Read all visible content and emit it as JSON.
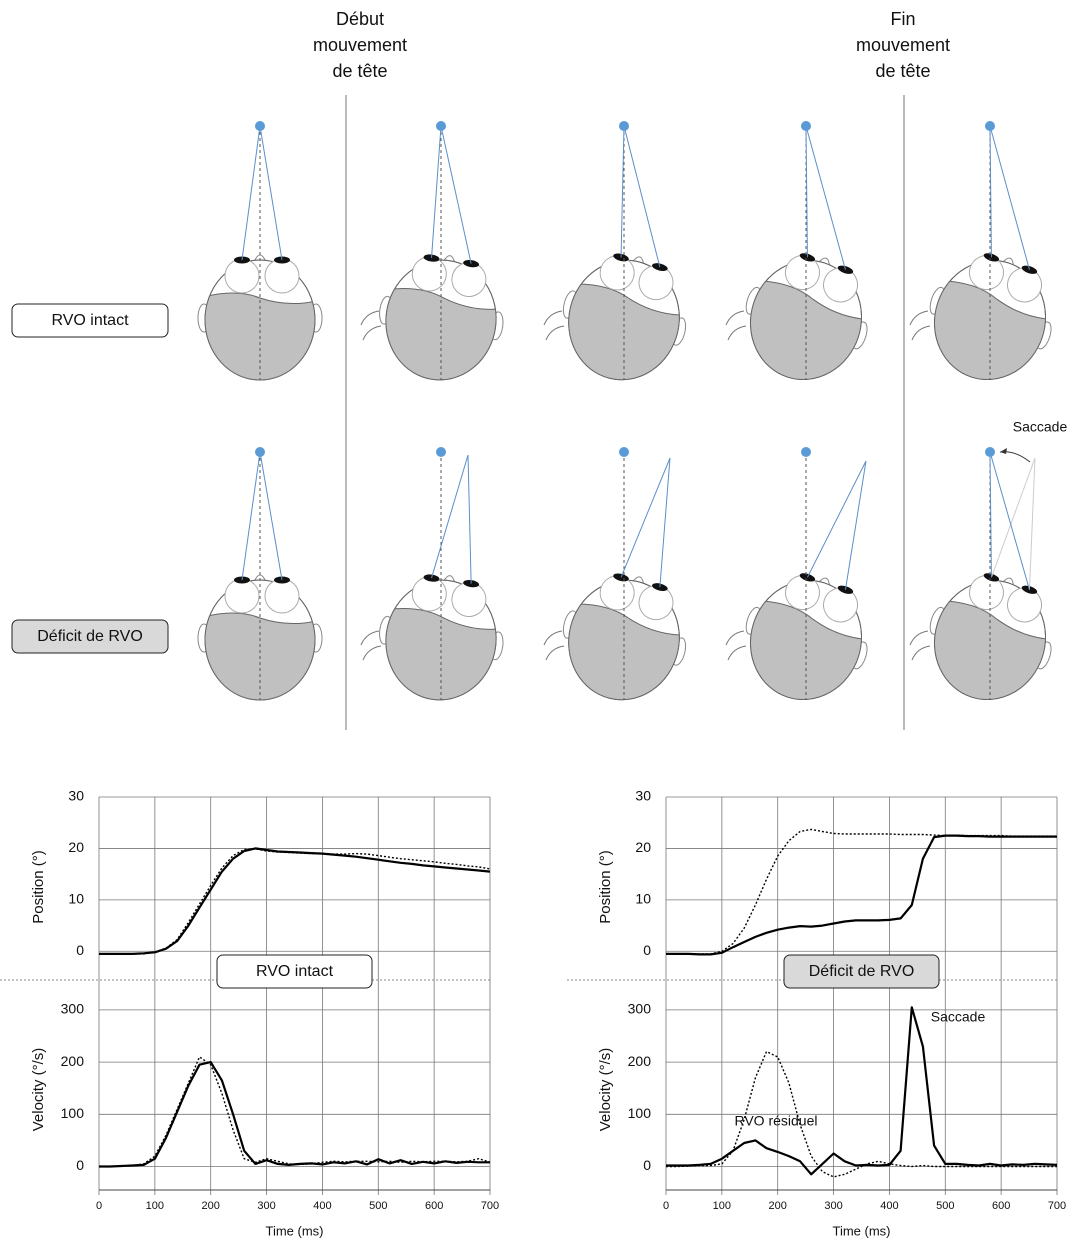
{
  "column_headers": [
    [
      "Début",
      "mouvement",
      "de tête"
    ],
    [
      "Fin",
      "mouvement",
      "de tête"
    ]
  ],
  "row_labels": [
    "RVO intact",
    "Déficit de RVO"
  ],
  "diagram_annotation": "Saccade",
  "chart_data": [
    {
      "type": "line",
      "label": "RVO intact",
      "xlabel": "Time (ms)",
      "xlim": [
        0,
        700
      ],
      "xticks": [
        0,
        100,
        200,
        300,
        400,
        500,
        600,
        700
      ],
      "annotations": [],
      "panels": [
        {
          "ylabel": "Position (°)",
          "ylim": [
            -5,
            30
          ],
          "yticks": [
            0,
            10,
            20,
            30
          ],
          "x": [
            0,
            20,
            40,
            60,
            80,
            100,
            120,
            140,
            160,
            180,
            200,
            220,
            240,
            260,
            280,
            300,
            320,
            340,
            360,
            380,
            400,
            420,
            440,
            460,
            480,
            500,
            520,
            540,
            560,
            580,
            600,
            620,
            640,
            660,
            680,
            700
          ],
          "series": [
            {
              "color": "#000000",
              "style": "dotted",
              "values": [
                -0.5,
                -0.5,
                -0.5,
                -0.5,
                -0.5,
                -0.2,
                0.6,
                2.3,
                5.6,
                9.2,
                12.8,
                16.2,
                18.6,
                19.8,
                19.9,
                19.5,
                19.3,
                19.2,
                19.1,
                19,
                19,
                18.9,
                18.9,
                19,
                18.9,
                18.6,
                18.3,
                18,
                17.8,
                17.6,
                17.4,
                17.1,
                16.9,
                16.6,
                16.4,
                16
              ]
            },
            {
              "color": "#000000",
              "style": "solid",
              "values": [
                -0.5,
                -0.5,
                -0.5,
                -0.5,
                -0.4,
                -0.2,
                0.5,
                2,
                5,
                8.5,
                12,
                15.5,
                18,
                19.5,
                20,
                19.7,
                19.4,
                19.3,
                19.2,
                19.1,
                19,
                18.8,
                18.6,
                18.4,
                18.1,
                17.8,
                17.5,
                17.2,
                17,
                16.7,
                16.5,
                16.3,
                16.1,
                15.9,
                15.7,
                15.5
              ]
            }
          ]
        },
        {
          "ylabel": "Velocity (°/s)",
          "ylim": [
            -45,
            340
          ],
          "yticks": [
            0,
            100,
            200,
            300
          ],
          "x": [
            0,
            20,
            40,
            60,
            80,
            100,
            120,
            140,
            160,
            180,
            200,
            220,
            240,
            260,
            280,
            300,
            320,
            340,
            360,
            380,
            400,
            420,
            440,
            460,
            480,
            500,
            520,
            540,
            560,
            580,
            600,
            620,
            640,
            660,
            680,
            700
          ],
          "series": [
            {
              "color": "#000000",
              "style": "dotted",
              "values": [
                0,
                0,
                1,
                2,
                5,
                20,
                60,
                110,
                160,
                210,
                195,
                140,
                70,
                15,
                8,
                15,
                10,
                5,
                4,
                5,
                8,
                10,
                9,
                10,
                10,
                9,
                10,
                8,
                10,
                9,
                10,
                10,
                9,
                10,
                15,
                8
              ]
            },
            {
              "color": "#000000",
              "style": "solid",
              "values": [
                0,
                0,
                1,
                2,
                3,
                15,
                55,
                105,
                155,
                195,
                200,
                165,
                100,
                30,
                5,
                12,
                5,
                3,
                5,
                6,
                4,
                8,
                6,
                10,
                4,
                14,
                6,
                12,
                5,
                9,
                6,
                10,
                7,
                9,
                8,
                8
              ]
            }
          ]
        }
      ]
    },
    {
      "type": "line",
      "label": "Déficit de RVO",
      "xlabel": "Time (ms)",
      "xlim": [
        0,
        700
      ],
      "xticks": [
        0,
        100,
        200,
        300,
        400,
        500,
        600,
        700
      ],
      "annotations": [
        "Saccade",
        "RVO résiduel"
      ],
      "panels": [
        {
          "ylabel": "Position (°)",
          "ylim": [
            -5,
            30
          ],
          "yticks": [
            0,
            10,
            20,
            30
          ],
          "x": [
            0,
            20,
            40,
            60,
            80,
            100,
            120,
            140,
            160,
            180,
            200,
            220,
            240,
            260,
            280,
            300,
            320,
            340,
            360,
            380,
            400,
            420,
            440,
            460,
            480,
            500,
            520,
            540,
            560,
            580,
            600,
            620,
            640,
            660,
            680,
            700
          ],
          "series": [
            {
              "color": "#000000",
              "style": "dotted",
              "values": [
                -0.5,
                -0.5,
                -0.5,
                -0.5,
                -0.5,
                0,
                1.5,
                4.5,
                9,
                14,
                18.5,
                21.5,
                23.3,
                23.7,
                23.3,
                22.9,
                22.8,
                22.8,
                22.8,
                22.8,
                22.8,
                22.7,
                22.7,
                22.7,
                22.6,
                22.5,
                22.6,
                22.5,
                22.5,
                22.5,
                22.5,
                22.4,
                22.4,
                22.4,
                22.4,
                22.4
              ]
            },
            {
              "color": "#000000",
              "style": "solid",
              "values": [
                -0.5,
                -0.5,
                -0.5,
                -0.6,
                -0.6,
                -0.3,
                0.8,
                1.8,
                2.8,
                3.6,
                4.2,
                4.6,
                4.9,
                4.8,
                5,
                5.4,
                5.8,
                6,
                6,
                6,
                6.1,
                6.4,
                9,
                18,
                22.2,
                22.5,
                22.5,
                22.4,
                22.4,
                22.3,
                22.3,
                22.3,
                22.3,
                22.3,
                22.3,
                22.3
              ]
            }
          ]
        },
        {
          "ylabel": "Velocity (°/s)",
          "ylim": [
            -45,
            340
          ],
          "yticks": [
            0,
            100,
            200,
            300
          ],
          "x": [
            0,
            20,
            40,
            60,
            80,
            100,
            120,
            140,
            160,
            180,
            200,
            220,
            240,
            260,
            280,
            300,
            320,
            340,
            360,
            380,
            400,
            420,
            440,
            460,
            480,
            500,
            520,
            540,
            560,
            580,
            600,
            620,
            640,
            660,
            680,
            700
          ],
          "series": [
            {
              "color": "#000000",
              "style": "dotted",
              "values": [
                0,
                0,
                1,
                2,
                2,
                5,
                30,
                90,
                170,
                220,
                210,
                160,
                80,
                20,
                -10,
                -20,
                -15,
                -5,
                5,
                10,
                5,
                2,
                0,
                2,
                0,
                0,
                0,
                0,
                0,
                0,
                0,
                0,
                0,
                0,
                0,
                0
              ]
            },
            {
              "color": "#000000",
              "style": "solid",
              "values": [
                2,
                2,
                2,
                3,
                5,
                15,
                30,
                45,
                50,
                35,
                28,
                20,
                10,
                -15,
                5,
                25,
                10,
                2,
                3,
                2,
                3,
                30,
                305,
                230,
                40,
                5,
                5,
                3,
                2,
                5,
                2,
                4,
                3,
                5,
                4,
                3
              ]
            }
          ]
        }
      ]
    }
  ]
}
